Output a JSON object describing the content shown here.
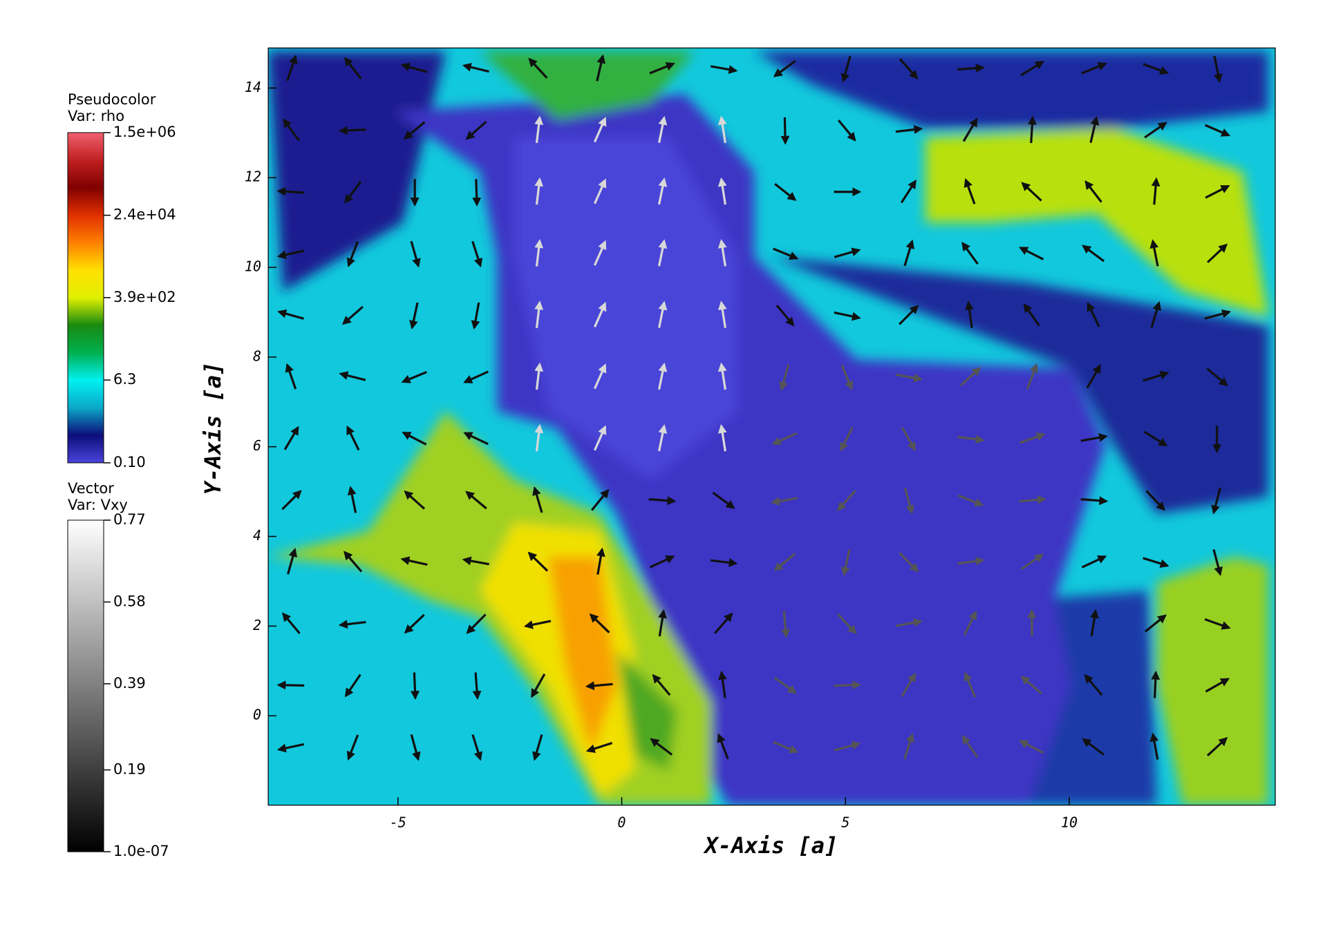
{
  "chart_data": {
    "type": "heatmap",
    "xlabel": "X-Axis [a]",
    "ylabel": "Y-Axis [a]",
    "xlim": [
      -7.9,
      14.6
    ],
    "ylim": [
      -2.0,
      14.9
    ],
    "xticks": [
      -5,
      0,
      5,
      10
    ],
    "yticks": [
      0,
      2,
      4,
      6,
      8,
      10,
      12,
      14
    ],
    "colorbars": [
      {
        "title": "Pseudocolor",
        "variable": "Var: rho",
        "log_scale": true,
        "colors": [
          "#4a44dc",
          "#0d0d7a",
          "#0aa8c8",
          "#00f0f0",
          "#00b050",
          "#1a8a10",
          "#e0f000",
          "#ffe000",
          "#ff8000",
          "#e03000",
          "#800000",
          "#c02020",
          "#f06070"
        ],
        "ticks": [
          {
            "value": 1500000,
            "label": "1.5e+06"
          },
          {
            "value": 24000,
            "label": "2.4e+04"
          },
          {
            "value": 390,
            "label": "3.9e+02"
          },
          6.3,
          {
            "value": 0.1,
            "label": "0.10"
          }
        ]
      },
      {
        "title": "Vector",
        "variable": "Var: Vxy",
        "log_scale": false,
        "colors": [
          "#000000",
          "#ffffff"
        ],
        "ticks": [
          0.77,
          0.58,
          0.39,
          0.19,
          {
            "value": 1e-07,
            "label": "1.0e-07"
          }
        ]
      }
    ]
  }
}
